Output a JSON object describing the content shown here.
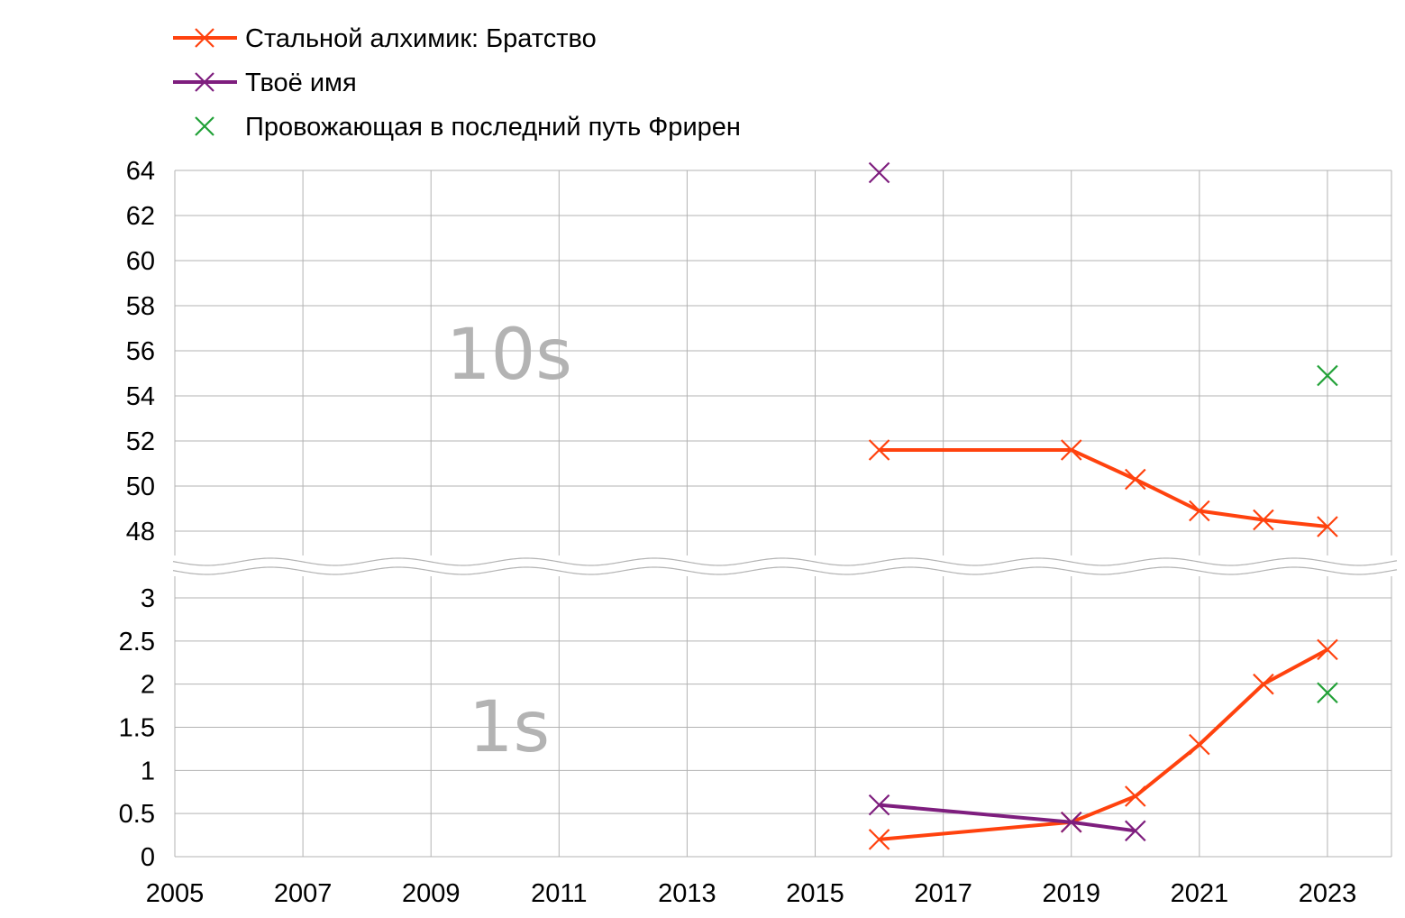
{
  "chart_data": {
    "type": "line",
    "x_axis": {
      "min": 2005,
      "max": 2024,
      "tick_labels": [
        "2005",
        "2007",
        "2009",
        "2011",
        "2013",
        "2015",
        "2017",
        "2019",
        "2021",
        "2023"
      ]
    },
    "legend": {
      "placement": "top-left",
      "entries": [
        {
          "name": "Стальной алхимик: Братство",
          "style": "line-marker",
          "color": "#ff420e"
        },
        {
          "name": "Твоё имя",
          "style": "line-marker",
          "color": "#7e1e7e"
        },
        {
          "name": "Провожающая в последний путь Фрирен",
          "style": "marker",
          "color": "#21a137"
        }
      ]
    },
    "panels": [
      {
        "label": "10s",
        "ylim": [
          48,
          64
        ],
        "y_tick_labels": [
          "48",
          "50",
          "52",
          "54",
          "56",
          "58",
          "60",
          "62",
          "64"
        ],
        "series": [
          {
            "name": "Стальной алхимик: Братство",
            "color": "#ff420e",
            "x": [
              2016,
              2019,
              2020,
              2021,
              2022,
              2023
            ],
            "y": [
              51.6,
              51.6,
              50.3,
              48.9,
              48.5,
              48.2
            ]
          },
          {
            "name": "Твоё имя",
            "color": "#7e1e7e",
            "x": [
              2016
            ],
            "y": [
              63.9
            ]
          },
          {
            "name": "Провожающая в последний путь Фрирен",
            "color": "#21a137",
            "x": [
              2023
            ],
            "y": [
              54.9
            ]
          }
        ]
      },
      {
        "label": "1s",
        "ylim": [
          0,
          3
        ],
        "y_tick_labels": [
          "0",
          "0.5",
          "1",
          "1.5",
          "2",
          "2.5",
          "3"
        ],
        "series": [
          {
            "name": "Стальной алхимик: Братство",
            "color": "#ff420e",
            "x": [
              2016,
              2019,
              2020,
              2021,
              2022,
              2023
            ],
            "y": [
              0.2,
              0.4,
              0.7,
              1.3,
              2.0,
              2.4
            ]
          },
          {
            "name": "Твоё имя",
            "color": "#7e1e7e",
            "x": [
              2016,
              2019,
              2020
            ],
            "y": [
              0.6,
              0.4,
              0.3
            ]
          },
          {
            "name": "Провожающая в последний путь Фрирен",
            "color": "#21a137",
            "x": [
              2023
            ],
            "y": [
              1.9
            ]
          }
        ]
      }
    ]
  }
}
